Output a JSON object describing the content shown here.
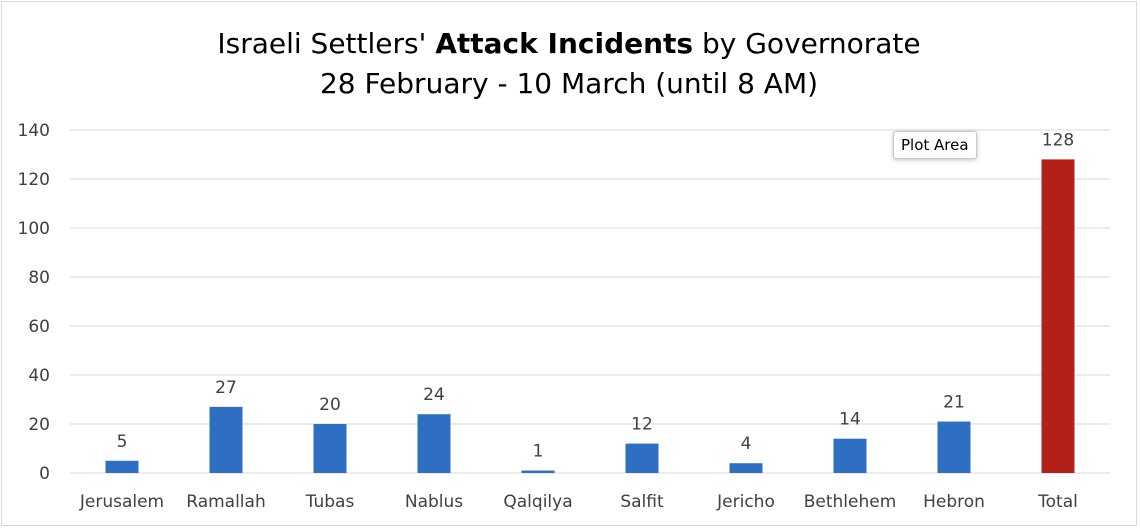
{
  "chart_data": {
    "type": "bar",
    "title": {
      "line1_pre": "Israeli Settlers' ",
      "line1_bold": "Attack Incidents",
      "line1_post": " by Governorate",
      "line2": "28 February - 10 March (until 8 AM)"
    },
    "categories": [
      "Jerusalem",
      "Ramallah",
      "Tubas",
      "Nablus",
      "Qalqilya",
      "Salfit",
      "Jericho",
      "Bethlehem",
      "Hebron",
      "Total"
    ],
    "values": [
      5,
      27,
      20,
      24,
      1,
      12,
      4,
      14,
      21,
      128
    ],
    "colors": [
      "#2e6fc4",
      "#2e6fc4",
      "#2e6fc4",
      "#2e6fc4",
      "#2e6fc4",
      "#2e6fc4",
      "#2e6fc4",
      "#2e6fc4",
      "#2e6fc4",
      "#b3201a"
    ],
    "ylim": [
      0,
      140
    ],
    "yticks": [
      0,
      20,
      40,
      60,
      80,
      100,
      120,
      140
    ],
    "grid": true,
    "xlabel": "",
    "ylabel": ""
  },
  "tooltip": "Plot Area"
}
